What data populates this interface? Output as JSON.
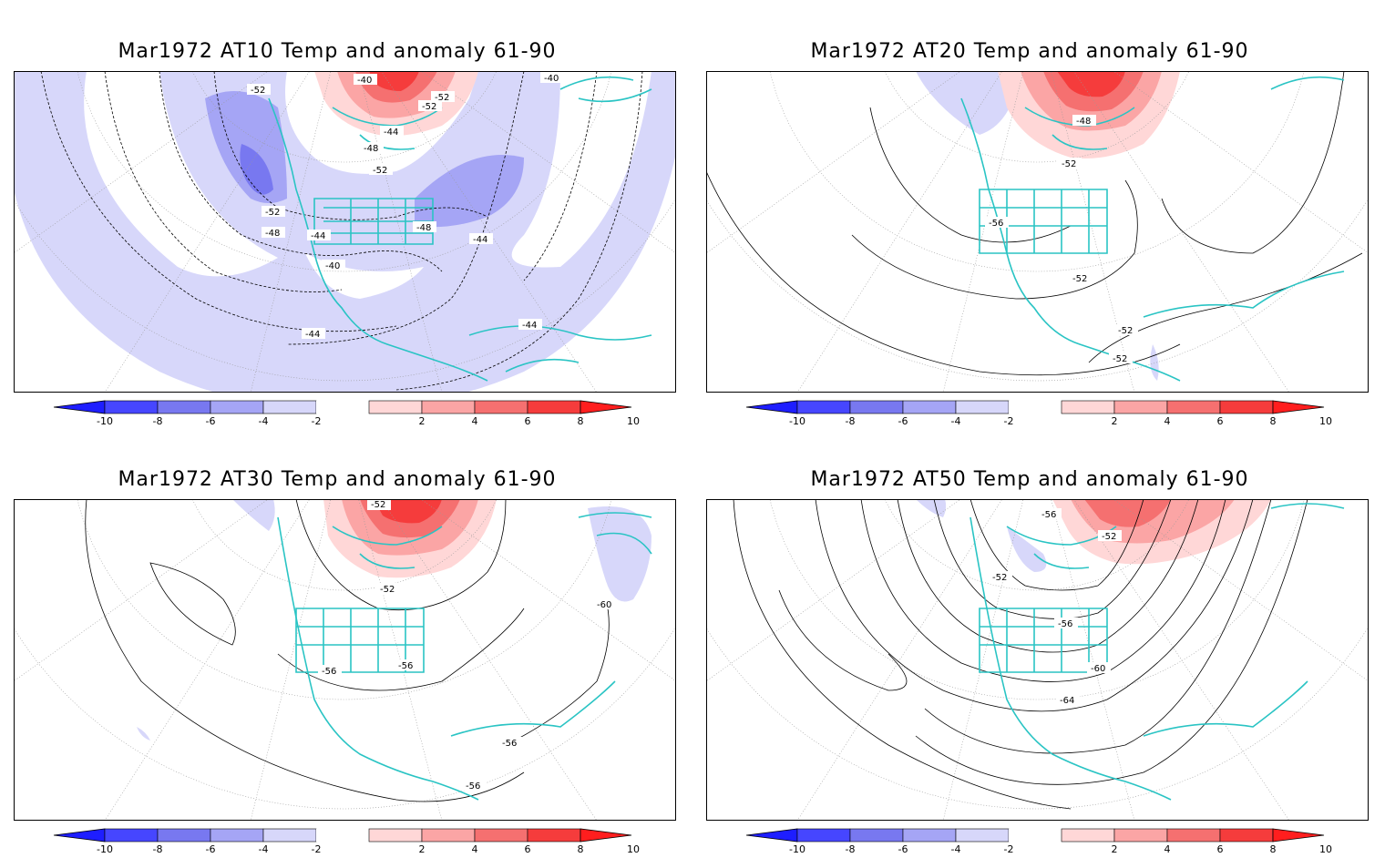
{
  "panels": [
    {
      "title": "Mar1972 AT10 Temp and anomaly 61-90",
      "labels": [
        "-52",
        "-40",
        "-52",
        "-52",
        "-44",
        "-48",
        "-52",
        "-40",
        "-52",
        "-48",
        "-48",
        "-44",
        "-44",
        "-40",
        "-44",
        "-44"
      ],
      "anomaly_pattern": "widespread negative (blue) anomalies over Pacific, Atlantic and Arctic; strong positive (red) anomaly over northern Canada/Greenland"
    },
    {
      "title": "Mar1972 AT20 Temp and anomaly 61-90",
      "labels": [
        "-48",
        "-52",
        "-56",
        "-52",
        "-52",
        "-52"
      ],
      "anomaly_pattern": "strong positive (red) anomaly over northern Canada/Greenland; weak negative over Alaska"
    },
    {
      "title": "Mar1972 AT30 Temp and anomaly 61-90",
      "labels": [
        "-52",
        "-52",
        "-60",
        "-56",
        "-56",
        "-56",
        "-56"
      ],
      "anomaly_pattern": "positive (red) anomaly over northern Canada/Greenland; weak negative over the Atlantic"
    },
    {
      "title": "Mar1972 AT50 Temp and anomaly 61-90",
      "labels": [
        "-56",
        "-52",
        "-52",
        "-56",
        "-60",
        "-64"
      ],
      "anomaly_pattern": "positive (red) anomaly over Greenland; weak negative over Canadian Arctic"
    }
  ],
  "colorbar": {
    "ticks": [
      "-10",
      "-8",
      "-6",
      "-4",
      "-2",
      "2",
      "4",
      "6",
      "8",
      "10"
    ],
    "colors": [
      "#1e1eff",
      "#4646ff",
      "#7878f0",
      "#a5a5f5",
      "#d7d7fa",
      "#ffffff",
      "#ffd7d7",
      "#fba5a5",
      "#f57070",
      "#f53c3c",
      "#ff1e1e"
    ]
  },
  "coastline_color": "#2ac4c4"
}
